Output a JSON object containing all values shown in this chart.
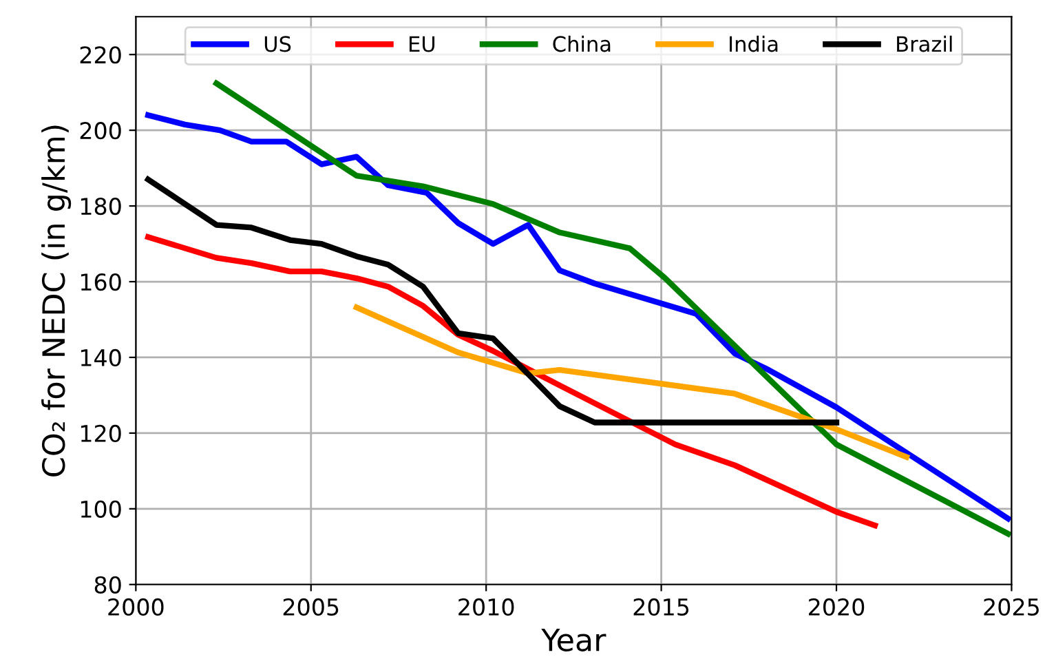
{
  "chart_data": {
    "type": "line",
    "xlabel": "Year",
    "ylabel": "CO₂ for NEDC (in g/km)",
    "xlim": [
      2000,
      2025
    ],
    "ylim": [
      80,
      230
    ],
    "xticks": [
      2000,
      2005,
      2010,
      2015,
      2020,
      2025
    ],
    "yticks": [
      80,
      100,
      120,
      140,
      160,
      180,
      200,
      220
    ],
    "grid": true,
    "legend": "top",
    "line_style": "solid",
    "marker": "none",
    "series": [
      {
        "name": "US",
        "color": "#0000ff",
        "x": [
          2000.35,
          2001.4,
          2002.4,
          2003.3,
          2004.3,
          2005.3,
          2006.3,
          2007.2,
          2008.3,
          2009.2,
          2010.2,
          2011.2,
          2012.1,
          2013.1,
          2016.0,
          2017.1,
          2018.0,
          2020.0,
          2024.9
        ],
        "values": [
          204,
          201.5,
          200,
          197,
          197,
          191,
          193,
          185.5,
          183.5,
          175.5,
          170,
          175,
          163,
          159.5,
          151.5,
          141,
          137,
          126.8,
          97.4
        ]
      },
      {
        "name": "EU",
        "color": "#ff0000",
        "x": [
          2000.35,
          2002.3,
          2003.3,
          2004.4,
          2005.3,
          2006.3,
          2007.2,
          2008.2,
          2009.2,
          2010.2,
          2012.1,
          2015.4,
          2017.1,
          2020.0,
          2021.1
        ],
        "values": [
          171.8,
          166.3,
          164.9,
          162.7,
          162.7,
          160.9,
          158.7,
          153.6,
          146,
          141.7,
          132.6,
          117,
          111.5,
          99.2,
          95.6
        ]
      },
      {
        "name": "China",
        "color": "#008000",
        "x": [
          2002.3,
          2006.3,
          2008.2,
          2010.2,
          2012.1,
          2014.1,
          2015.1,
          2020.0,
          2024.9
        ],
        "values": [
          212.4,
          188,
          185.2,
          180.5,
          173,
          168.8,
          161,
          117,
          93.4
        ]
      },
      {
        "name": "India",
        "color": "#ffa500",
        "x": [
          2006.3,
          2009.2,
          2011.2,
          2012.1,
          2017.1,
          2020.0,
          2022.0
        ],
        "values": [
          153.2,
          141.3,
          135.8,
          136.7,
          130.4,
          121,
          113.7
        ]
      },
      {
        "name": "Brazil",
        "color": "#000000",
        "x": [
          2000.35,
          2002.3,
          2003.3,
          2004.4,
          2005.3,
          2006.3,
          2007.2,
          2008.2,
          2009.2,
          2010.2,
          2012.1,
          2013.1,
          2020.0
        ],
        "values": [
          187,
          175,
          174.3,
          171,
          170,
          166.7,
          164.5,
          158.7,
          146.4,
          145,
          127.1,
          122.8,
          122.8
        ]
      }
    ]
  }
}
